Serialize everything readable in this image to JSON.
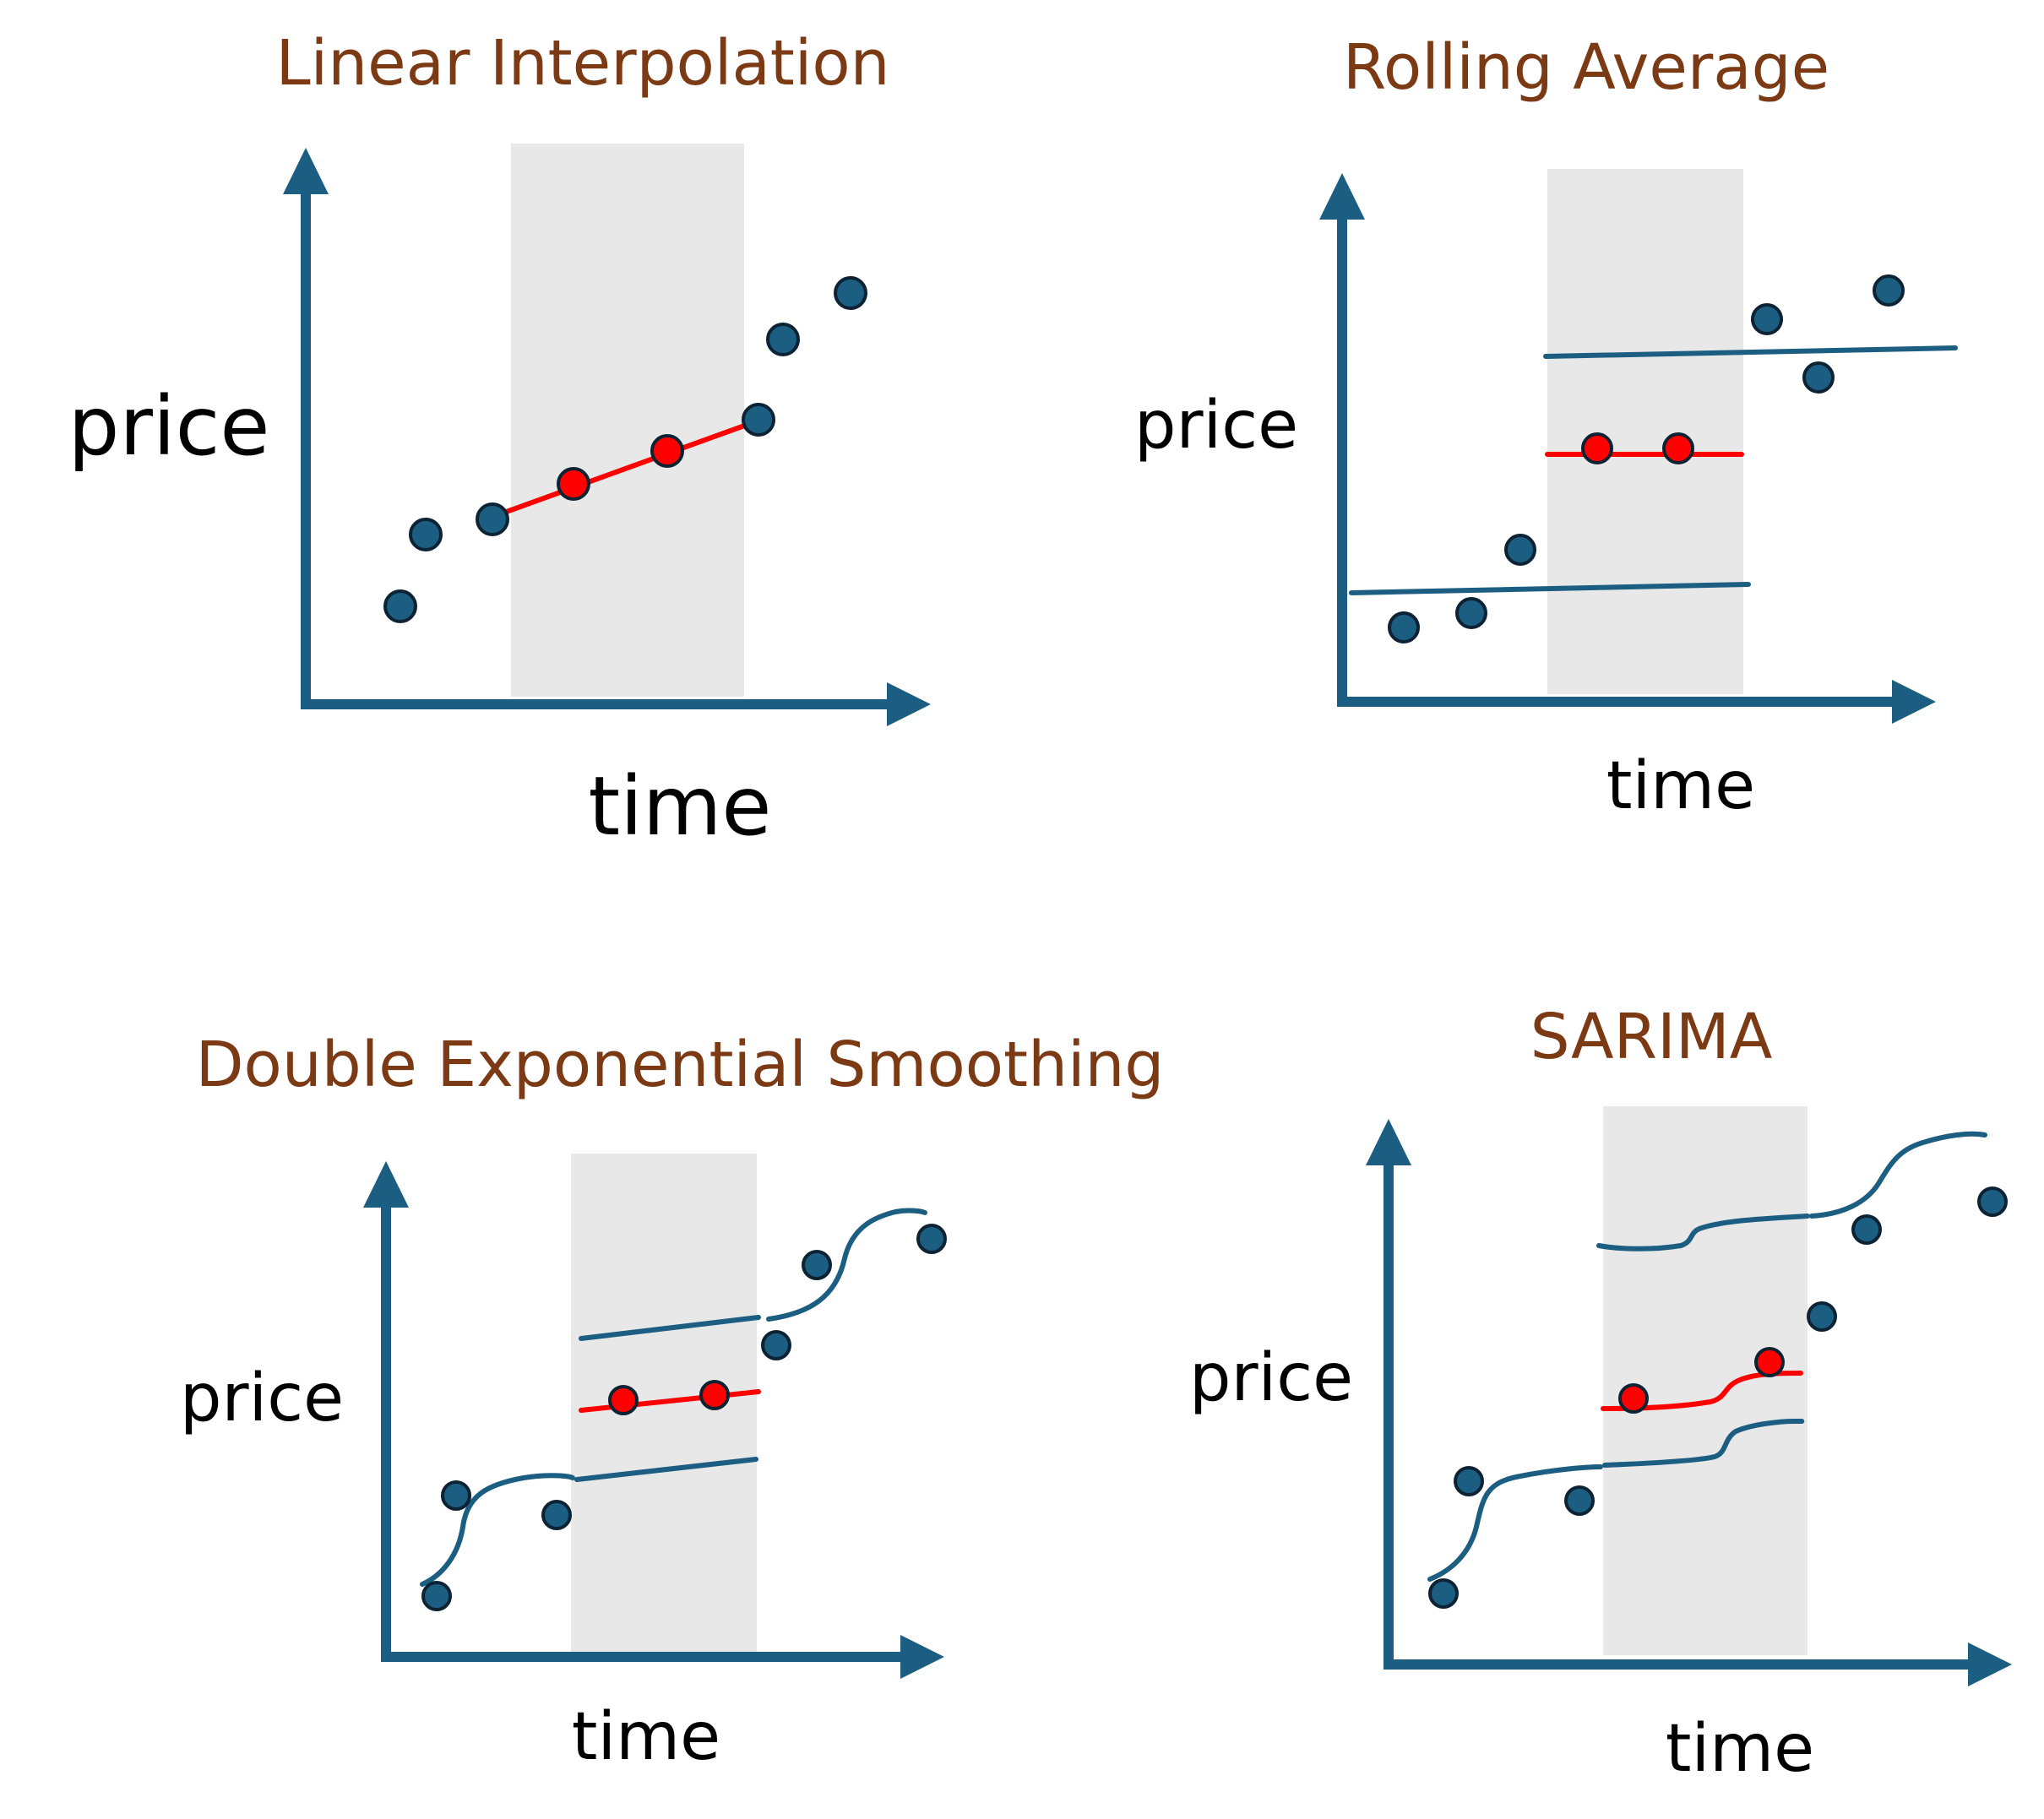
{
  "colors": {
    "title": "#7b3a14",
    "axis": "#1b5e82",
    "observed_point": "#1b5e82",
    "imputed_point": "#ff0000",
    "imputed_line": "#ff0000",
    "fit_line": "#1b5e82",
    "missing_band": "#e8e8e8",
    "text": "#000000"
  },
  "panels": [
    {
      "id": "linear",
      "title": "Linear Interpolation",
      "ylabel": "price",
      "xlabel": "time"
    },
    {
      "id": "rolling",
      "title": "Rolling Average",
      "ylabel": "price",
      "xlabel": "time"
    },
    {
      "id": "des",
      "title": "Double Exponential Smoothing",
      "ylabel": "price",
      "xlabel": "time"
    },
    {
      "id": "sarima",
      "title": "SARIMA",
      "ylabel": "price",
      "xlabel": "time"
    }
  ]
}
